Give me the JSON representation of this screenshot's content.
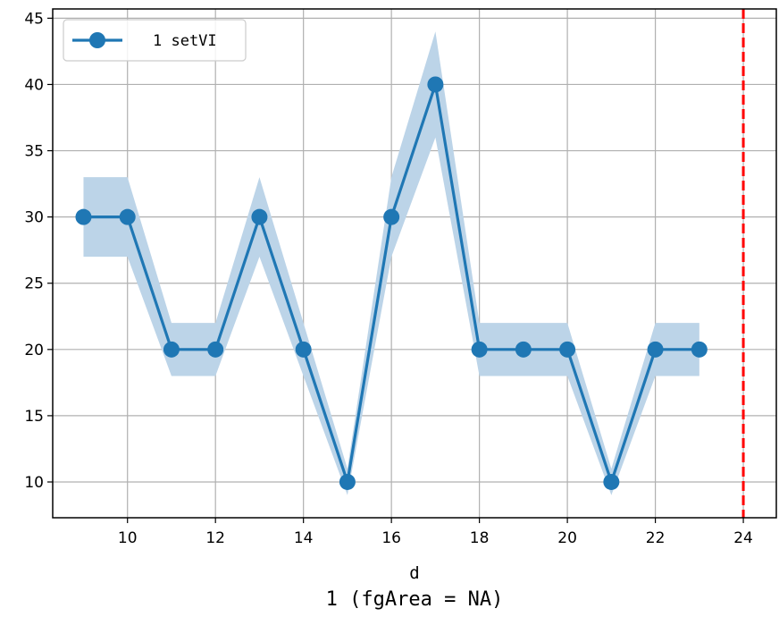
{
  "chart_data": {
    "type": "line",
    "title": "1 (fgArea = NA)",
    "xlabel": "d",
    "ylabel": "",
    "xlim": [
      8.3,
      24.75
    ],
    "ylim": [
      7.3,
      45.7
    ],
    "xticks": [
      10,
      12,
      14,
      16,
      18,
      20,
      22,
      24
    ],
    "yticks": [
      10,
      15,
      20,
      25,
      30,
      35,
      40,
      45
    ],
    "grid": true,
    "legend_position": "top-left",
    "series": [
      {
        "name": "1 setVI",
        "color": "#1f77b4",
        "band_color": "#bcd4e8",
        "x": [
          9,
          10,
          11,
          12,
          13,
          14,
          15,
          16,
          17,
          18,
          19,
          20,
          21,
          22,
          23
        ],
        "y": [
          30,
          30,
          20,
          20,
          30,
          20,
          10,
          30,
          40,
          20,
          20,
          20,
          10,
          20,
          20
        ],
        "lower": [
          27,
          27,
          18,
          18,
          27,
          18,
          9,
          27,
          36,
          18,
          18,
          18,
          9,
          18,
          18
        ],
        "upper": [
          33,
          33,
          22,
          22,
          33,
          22,
          11,
          33,
          44,
          22,
          22,
          22,
          11,
          22,
          22
        ]
      }
    ],
    "reference_lines": [
      {
        "axis": "x",
        "value": 24,
        "color": "#ff0000",
        "style": "dashed"
      }
    ]
  }
}
